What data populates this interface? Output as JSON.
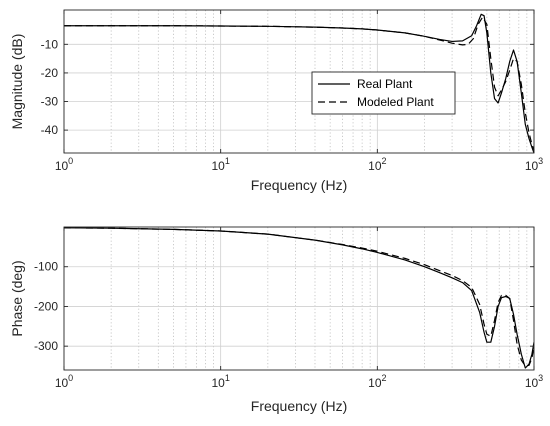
{
  "chart_data": [
    {
      "type": "line",
      "xlabel": "Frequency (Hz)",
      "ylabel": "Magnitude (dB)",
      "xscale": "log",
      "xlim": [
        1,
        1000
      ],
      "ylim": [
        -48,
        2
      ],
      "grid": true,
      "legend_position": "right",
      "x_ticks": [
        1,
        10,
        100,
        1000
      ],
      "x_tick_labels": [
        {
          "base": "10",
          "exp": "0"
        },
        {
          "base": "10",
          "exp": "1"
        },
        {
          "base": "10",
          "exp": "2"
        },
        {
          "base": "10",
          "exp": "3"
        }
      ],
      "y_ticks": [
        -10,
        -20,
        -30,
        -40
      ],
      "y_tick_labels": [
        "-10",
        "-20",
        "-30",
        "-40"
      ],
      "series": [
        {
          "name": "Real Plant",
          "style": "solid",
          "color": "#000000",
          "x": [
            1,
            2,
            5,
            10,
            20,
            40,
            60,
            80,
            100,
            150,
            200,
            250,
            300,
            350,
            400,
            430,
            460,
            480,
            500,
            530,
            560,
            590,
            620,
            660,
            700,
            740,
            780,
            830,
            880,
            930,
            970,
            1000
          ],
          "y": [
            -3.5,
            -3.5,
            -3.5,
            -3.6,
            -3.7,
            -4.0,
            -4.3,
            -4.6,
            -5.0,
            -6.0,
            -7.2,
            -8.3,
            -9.0,
            -8.8,
            -7.0,
            -3.5,
            0.5,
            0.0,
            -6.0,
            -20.0,
            -29.0,
            -30.5,
            -27.0,
            -22.0,
            -16.0,
            -12.0,
            -16.0,
            -27.0,
            -38.0,
            -43.0,
            -46.0,
            -48.0
          ]
        },
        {
          "name": "Modeled Plant",
          "style": "dashed",
          "color": "#000000",
          "x": [
            1,
            2,
            5,
            10,
            20,
            40,
            60,
            80,
            100,
            150,
            200,
            250,
            300,
            350,
            380,
            410,
            440,
            470,
            500,
            530,
            560,
            590,
            620,
            660,
            700,
            740,
            780,
            830,
            880,
            930,
            970,
            1000
          ],
          "y": [
            -3.5,
            -3.5,
            -3.5,
            -3.6,
            -3.7,
            -4.0,
            -4.3,
            -4.6,
            -5.0,
            -6.0,
            -7.2,
            -8.5,
            -9.6,
            -10.2,
            -10.0,
            -8.0,
            -3.0,
            -0.5,
            -3.0,
            -15.0,
            -25.0,
            -28.0,
            -26.0,
            -23.0,
            -19.0,
            -15.0,
            -16.0,
            -24.0,
            -34.0,
            -41.0,
            -45.0,
            -47.0
          ]
        }
      ]
    },
    {
      "type": "line",
      "xlabel": "Frequency (Hz)",
      "ylabel": "Phase (deg)",
      "xscale": "log",
      "xlim": [
        1,
        1000
      ],
      "ylim": [
        -360,
        0
      ],
      "grid": true,
      "x_ticks": [
        1,
        10,
        100,
        1000
      ],
      "x_tick_labels": [
        {
          "base": "10",
          "exp": "0"
        },
        {
          "base": "10",
          "exp": "1"
        },
        {
          "base": "10",
          "exp": "2"
        },
        {
          "base": "10",
          "exp": "3"
        }
      ],
      "y_ticks": [
        -100,
        -200,
        -300
      ],
      "y_tick_labels": [
        "-100",
        "-200",
        "-300"
      ],
      "series": [
        {
          "name": "Real Plant",
          "style": "solid",
          "color": "#000000",
          "x": [
            1,
            2,
            5,
            10,
            20,
            40,
            60,
            80,
            100,
            150,
            200,
            250,
            300,
            350,
            400,
            450,
            480,
            500,
            530,
            560,
            590,
            620,
            660,
            700,
            740,
            780,
            830,
            880,
            930,
            970,
            1000
          ],
          "y": [
            -2,
            -3,
            -6,
            -10,
            -18,
            -33,
            -45,
            -55,
            -64,
            -83,
            -100,
            -115,
            -128,
            -140,
            -160,
            -215,
            -265,
            -290,
            -290,
            -250,
            -200,
            -178,
            -175,
            -180,
            -220,
            -270,
            -320,
            -355,
            -345,
            -320,
            -290
          ]
        },
        {
          "name": "Modeled Plant",
          "style": "dashed",
          "color": "#000000",
          "x": [
            1,
            2,
            5,
            10,
            20,
            40,
            60,
            80,
            100,
            150,
            200,
            250,
            300,
            350,
            400,
            450,
            480,
            500,
            530,
            560,
            590,
            620,
            660,
            700,
            740,
            780,
            830,
            880,
            930,
            970,
            1000
          ],
          "y": [
            -2,
            -3,
            -6,
            -10,
            -18,
            -33,
            -44,
            -53,
            -61,
            -79,
            -95,
            -110,
            -122,
            -135,
            -152,
            -195,
            -245,
            -270,
            -275,
            -235,
            -190,
            -172,
            -172,
            -180,
            -235,
            -295,
            -335,
            -350,
            -348,
            -330,
            -300
          ]
        }
      ]
    }
  ]
}
